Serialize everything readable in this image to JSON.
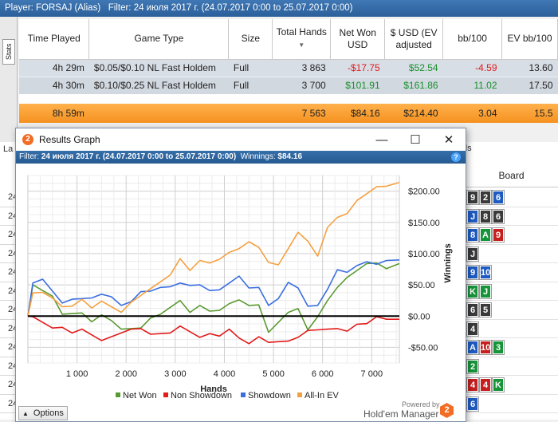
{
  "filterbar": {
    "player_label": "Player:",
    "player_value": "FORSAJ (Alias)",
    "filter_label": "Filter:",
    "filter_value": "24 июля 2017 г. (24.07.2017 0:00 to 25.07.2017 0:00)"
  },
  "side_tab": "Stats",
  "stats_table": {
    "headers": [
      "Time Played",
      "Game Type",
      "Size",
      "Total Hands",
      "Net Won USD",
      "$ USD (EV adjusted",
      "bb/100",
      "EV bb/100"
    ],
    "rows": [
      [
        "4h 29m",
        "$0.05/$0.10 NL Fast Holdem",
        "Full",
        "3 863",
        "-$17.75",
        "$52.54",
        "-4.59",
        "13.60"
      ],
      [
        "4h 30m",
        "$0.10/$0.25 NL Fast Holdem",
        "Full",
        "3 700",
        "$101.91",
        "$161.86",
        "11.02",
        "17.50"
      ]
    ],
    "total": [
      "8h 59m",
      "",
      "",
      "7 563",
      "$84.16",
      "$214.40",
      "3.04",
      "15.5"
    ]
  },
  "lower": {
    "board_title": "Board",
    "tab_fragment_left": "La",
    "tab_fragment_right": "ds",
    "left_values": [
      "24",
      "24",
      "24",
      "24",
      "24",
      "24",
      "24",
      "24",
      "24",
      "24",
      "24",
      "24"
    ],
    "boards": [
      [
        [
          "9",
          "s"
        ],
        [
          "2",
          "s"
        ],
        [
          "6",
          "d"
        ]
      ],
      [
        [
          "J",
          "d"
        ],
        [
          "8",
          "s"
        ],
        [
          "6",
          "s"
        ]
      ],
      [
        [
          "8",
          "d"
        ],
        [
          "A",
          "c"
        ],
        [
          "9",
          "h"
        ]
      ],
      [
        [
          "J",
          "s"
        ]
      ],
      [
        [
          "9",
          "d"
        ],
        [
          "10",
          "d"
        ]
      ],
      [
        [
          "K",
          "c"
        ],
        [
          "J",
          "c"
        ]
      ],
      [
        [
          "6",
          "s"
        ],
        [
          "5",
          "s"
        ]
      ],
      [
        [
          "4",
          "s"
        ]
      ],
      [
        [
          "A",
          "d"
        ],
        [
          "10",
          "h"
        ],
        [
          "3",
          "c"
        ]
      ],
      [
        [
          "2",
          "c"
        ]
      ],
      [
        [
          "4",
          "h"
        ],
        [
          "4",
          "h"
        ],
        [
          "K",
          "c"
        ]
      ],
      [
        [
          "6",
          "d"
        ]
      ]
    ]
  },
  "dialog": {
    "title": "Results Graph",
    "app_icon_glyph": "2",
    "filter_label": "Filter:",
    "filter_value": "24 июля 2017 г. (24.07.2017 0:00 to 25.07.2017 0:00)",
    "winnings_label": "Winnings:",
    "winnings_value": "$84.16",
    "help_glyph": "?",
    "minimize_glyph": "—",
    "maximize_glyph": "☐",
    "close_glyph": "✕",
    "options_label": "Options",
    "powered_by": "Powered by",
    "brand": "Hold'em Manager",
    "brand_glyph": "2"
  },
  "chart_data": {
    "type": "line",
    "xlabel": "Hands",
    "ylabel": "Winnings",
    "xlim": [
      0,
      7563
    ],
    "ylim": [
      -75,
      225
    ],
    "x_ticks": [
      1000,
      2000,
      3000,
      4000,
      5000,
      6000,
      7000
    ],
    "x_tick_labels": [
      "1 000",
      "2 000",
      "3 000",
      "4 000",
      "5 000",
      "6 000",
      "7 000"
    ],
    "y_ticks": [
      200,
      150,
      100,
      50,
      0,
      -50
    ],
    "y_tick_labels": [
      "$200.00",
      "$150.00",
      "$100.00",
      "$50.00",
      "$0.00",
      "-$50.00"
    ],
    "grid": true,
    "legend_position": "bottom",
    "x": [
      0,
      100,
      300,
      500,
      700,
      900,
      1100,
      1300,
      1500,
      1700,
      1900,
      2100,
      2300,
      2500,
      2700,
      2900,
      3100,
      3300,
      3500,
      3700,
      3900,
      4100,
      4300,
      4500,
      4700,
      4900,
      5100,
      5300,
      5500,
      5700,
      5900,
      6100,
      6300,
      6500,
      6700,
      6900,
      7100,
      7300,
      7563
    ],
    "series": [
      {
        "name": "Net Won",
        "color": "#5a9a32",
        "values": [
          0,
          50,
          45,
          30,
          5,
          0,
          5,
          -5,
          0,
          -5,
          -25,
          -20,
          -15,
          -5,
          5,
          10,
          25,
          10,
          15,
          10,
          5,
          20,
          30,
          15,
          20,
          -30,
          -10,
          10,
          10,
          -20,
          -5,
          25,
          50,
          60,
          75,
          80,
          85,
          80,
          84
        ]
      },
      {
        "name": "Non Showdown",
        "color": "#e21b1b",
        "values": [
          0,
          -5,
          -10,
          -15,
          -20,
          -25,
          -25,
          -30,
          -35,
          -35,
          -25,
          -25,
          -20,
          -25,
          -30,
          -25,
          -20,
          -25,
          -30,
          -30,
          -30,
          -25,
          -35,
          -40,
          -35,
          -40,
          -45,
          -40,
          -30,
          -25,
          -20,
          -25,
          -20,
          -20,
          -15,
          -10,
          -5,
          -5,
          -5
        ]
      },
      {
        "name": "Showdown",
        "color": "#3a6ee0",
        "values": [
          0,
          55,
          55,
          40,
          25,
          25,
          30,
          25,
          35,
          35,
          15,
          25,
          35,
          40,
          50,
          45,
          55,
          45,
          50,
          45,
          40,
          55,
          60,
          45,
          50,
          15,
          30,
          50,
          45,
          20,
          15,
          45,
          70,
          70,
          85,
          85,
          85,
          85,
          90
        ]
      },
      {
        "name": "All-In EV",
        "color": "#f5a040",
        "values": [
          0,
          35,
          40,
          25,
          15,
          20,
          25,
          15,
          20,
          15,
          10,
          20,
          35,
          40,
          55,
          70,
          90,
          75,
          85,
          85,
          95,
          100,
          110,
          115,
          110,
          90,
          80,
          110,
          130,
          120,
          100,
          140,
          160,
          160,
          185,
          200,
          205,
          210,
          214
        ]
      }
    ]
  }
}
